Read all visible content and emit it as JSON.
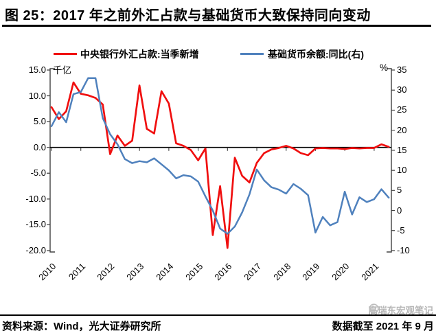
{
  "title": "图 25：2017 年之前外汇占款与基础货币大致保持同向变动",
  "legend": [
    {
      "label": "中央银行外汇占款:当季新增",
      "color": "#f00f0f"
    },
    {
      "label": "基础货币余额:同比(右)",
      "color": "#4f81bd"
    }
  ],
  "chart_data": {
    "type": "line",
    "x_unit": "quarter",
    "x_range": [
      "2010Q1",
      "2021Q3"
    ],
    "x_tick_labels": [
      "2010",
      "2011",
      "2012",
      "2013",
      "2014",
      "2015",
      "2016",
      "2017",
      "2018",
      "2019",
      "2020",
      "2021"
    ],
    "left_axis": {
      "label": "千亿",
      "min": -20,
      "max": 15,
      "tick_labels": [
        "15.0",
        "10.0",
        "5.0",
        "0.0",
        "-5.0",
        "-10.0",
        "-15.0",
        "-20.0"
      ],
      "tick_values": [
        15,
        10,
        5,
        0,
        -5,
        -10,
        -15,
        -20
      ]
    },
    "right_axis": {
      "label": "%",
      "min": -10,
      "max": 35,
      "tick_labels": [
        "35",
        "30",
        "25",
        "20",
        "15",
        "10",
        "5",
        "0",
        "-5",
        "-10"
      ],
      "tick_values": [
        35,
        30,
        25,
        20,
        15,
        10,
        5,
        0,
        -5,
        -10
      ]
    },
    "grid": false,
    "legend_position": "top",
    "series": [
      {
        "name": "中央银行外汇占款:当季新增",
        "axis": "left",
        "color": "#f00f0f",
        "values": [
          7.8,
          5.5,
          7.0,
          12.6,
          10.4,
          10.1,
          9.6,
          8.3,
          -1.3,
          2.3,
          0.3,
          1.3,
          12.0,
          3.6,
          2.7,
          10.9,
          8.5,
          0.8,
          0.3,
          -0.5,
          -2.5,
          -0.2,
          -17.0,
          -7.5,
          -19.5,
          -2.0,
          -5.5,
          -6.8,
          -3.0,
          -1.1,
          -0.4,
          -0.1,
          0.3,
          -0.2,
          -1.1,
          -1.5,
          -0.2,
          -0.1,
          -0.2,
          -0.2,
          -0.3,
          -0.1,
          -0.2,
          -0.1,
          -0.1,
          0.6,
          0.1
        ]
      },
      {
        "name": "基础货币余额:同比(右)",
        "axis": "right",
        "color": "#4f81bd",
        "values": [
          21.0,
          24.5,
          22.0,
          29.0,
          29.5,
          33.0,
          33.0,
          23.0,
          19.0,
          16.5,
          12.8,
          11.8,
          12.3,
          12.0,
          13.0,
          11.5,
          10.0,
          8.0,
          8.8,
          8.5,
          7.2,
          3.5,
          0.0,
          -4.5,
          -5.8,
          -4.0,
          -0.5,
          4.0,
          10.2,
          7.5,
          5.8,
          5.2,
          4.2,
          6.6,
          5.4,
          3.8,
          -5.5,
          -1.6,
          -3.7,
          -2.9,
          4.7,
          -1.0,
          3.3,
          2.1,
          2.8,
          5.3,
          3.2
        ]
      }
    ]
  },
  "footer": {
    "source": "资料来源：Wind，光大证券研究所",
    "note": "数据截至 2021 年 9 月"
  },
  "watermark": "高瑞东宏观笔记"
}
